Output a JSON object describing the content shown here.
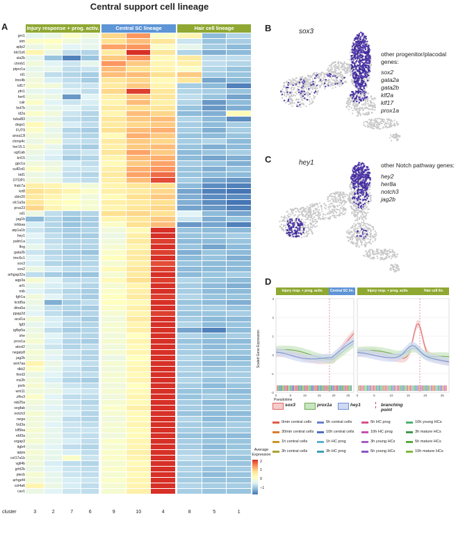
{
  "page_title": "Central support cell lineage",
  "panel_a": {
    "letter": "A",
    "groups": [
      {
        "label": "Injury response + prog. activ.",
        "color": "#8ea832"
      },
      {
        "label": "Central SC lineage",
        "color": "#5d95d6"
      },
      {
        "label": "Hair cell lineage",
        "color": "#8ea832"
      }
    ],
    "clusters": [
      "3",
      "2",
      "7",
      "6",
      "9",
      "10",
      "4",
      "8",
      "5",
      "1"
    ],
    "cluster_axis_label": "cluster",
    "genes": [
      "grn1",
      "stm",
      "aplp2",
      "blcl1s6",
      "sla2b",
      "ctnnb1",
      "ptprz1a",
      "id1",
      "lmo4b",
      "klf17",
      "pfn1",
      "her6",
      "calr",
      "fzd7b",
      "id2a",
      "tuba8l3",
      "degs1",
      "FUT9",
      "anxa13l",
      "chmp4c",
      "her15.1",
      "ugt1ab",
      "krt15",
      "gpc1a",
      "sulf2st1",
      "lad1",
      "OTOP1",
      "fndc7a",
      "krt8",
      "cbln20",
      "slc1a3a",
      "prss23",
      "isl1",
      "jag1b",
      "inhbaa",
      "atp1a1b",
      "hey1",
      "palm1a",
      "lfng",
      "gata2b",
      "tmc6c1",
      "sox3",
      "sox2",
      "arhgap32a",
      "aqp3a",
      "arl1",
      "mib",
      "fgfr1a",
      "kctd5a",
      "dtna5a",
      "ppap2d",
      "acsl1a",
      "fgf3",
      "igfbp5a",
      "she",
      "prox1a",
      "atoxl2",
      "negaly8",
      "jag2b",
      "wnt7aa",
      "dkk2",
      "fmnl3",
      "ms2b",
      "porb",
      "wnt11",
      "zfhx3",
      "rab25a",
      "vegfab",
      "notch3",
      "rarga",
      "fzd3a",
      "klf5ba",
      "ebf3a",
      "srgap3",
      "itgb4",
      "appa",
      "col17a1b",
      "vgll4b",
      "grhl2b",
      "plecb",
      "arhgef4",
      "col4a6",
      "cav1"
    ],
    "expression_matrix": [
      [
        0.2,
        0.3,
        0.6,
        0.4,
        1.4,
        1.9,
        0.6,
        0.9,
        -0.6,
        -0.3
      ],
      [
        0.6,
        0.7,
        0.4,
        0.2,
        1.3,
        1.6,
        1.2,
        -0.1,
        -0.5,
        -0.4
      ],
      [
        0.3,
        0.5,
        0.1,
        0.2,
        1.8,
        1.9,
        0.6,
        0.2,
        -0.4,
        -0.6
      ],
      [
        0.9,
        0.3,
        -0.2,
        -0.3,
        1.1,
        2.6,
        1.2,
        -0.3,
        -0.7,
        -0.6
      ],
      [
        0.2,
        -0.5,
        -1.1,
        -0.5,
        1.5,
        1.9,
        0.8,
        1.1,
        -0.2,
        -0.2
      ],
      [
        0.4,
        0.1,
        -0.1,
        0.2,
        1.9,
        1.5,
        0.9,
        1.0,
        -0.2,
        -0.3
      ],
      [
        0.2,
        0.2,
        -0.2,
        -0.1,
        1.6,
        1.3,
        0.9,
        0.6,
        -0.3,
        -0.5
      ],
      [
        0.3,
        -0.2,
        -0.3,
        -0.4,
        1.6,
        1.6,
        1.3,
        1.5,
        -0.4,
        -0.5
      ],
      [
        0.4,
        0.0,
        -0.2,
        -0.4,
        1.2,
        1.4,
        0.8,
        1.2,
        -0.8,
        -0.6
      ],
      [
        0.5,
        0.4,
        -0.1,
        -0.1,
        1.1,
        1.5,
        0.9,
        -0.4,
        -0.6,
        -1.1
      ],
      [
        0.2,
        0.1,
        0.0,
        -0.2,
        1.4,
        2.5,
        1.2,
        -0.3,
        -0.4,
        -0.5
      ],
      [
        0.4,
        0.3,
        -0.9,
        0.1,
        1.0,
        1.5,
        1.2,
        -0.2,
        -0.5,
        -0.8
      ],
      [
        0.6,
        0.1,
        -0.1,
        0.0,
        0.9,
        1.6,
        1.0,
        -0.3,
        -0.9,
        -0.6
      ],
      [
        0.3,
        0.2,
        0.1,
        -0.1,
        1.1,
        1.3,
        1.2,
        -0.5,
        -0.9,
        -0.7
      ],
      [
        0.6,
        0.4,
        -0.1,
        -0.3,
        0.9,
        1.6,
        1.4,
        -0.6,
        -0.7,
        0.8
      ],
      [
        0.3,
        0.2,
        -0.2,
        -0.3,
        1.2,
        1.5,
        1.6,
        -0.3,
        -0.6,
        -1.0
      ],
      [
        0.8,
        0.4,
        0.0,
        -0.2,
        1.1,
        1.4,
        1.5,
        -0.4,
        -0.6,
        -0.4
      ],
      [
        0.6,
        0.2,
        -0.3,
        -0.4,
        1.3,
        1.6,
        1.7,
        -0.4,
        -0.7,
        -0.4
      ],
      [
        0.4,
        0.3,
        -0.2,
        -0.3,
        0.8,
        1.7,
        1.5,
        -0.5,
        -0.6,
        -0.5
      ],
      [
        0.3,
        0.5,
        -0.1,
        -0.2,
        1.1,
        1.5,
        1.4,
        -0.4,
        -0.3,
        -0.6
      ],
      [
        0.5,
        0.2,
        -0.3,
        -0.4,
        1.0,
        1.5,
        1.6,
        -0.5,
        -0.7,
        -0.6
      ],
      [
        0.3,
        0.1,
        -0.2,
        -0.1,
        1.2,
        1.8,
        1.5,
        -0.6,
        -0.5,
        -0.4
      ],
      [
        0.2,
        0.0,
        -0.4,
        -0.3,
        0.9,
        1.6,
        1.7,
        -0.6,
        -0.8,
        -0.7
      ],
      [
        0.4,
        0.3,
        0.0,
        -0.2,
        0.8,
        1.5,
        1.8,
        -0.4,
        -0.5,
        -0.7
      ],
      [
        0.6,
        0.4,
        -0.1,
        -0.1,
        1.0,
        1.7,
        1.9,
        -0.5,
        -0.7,
        -0.5
      ],
      [
        0.3,
        0.2,
        -0.2,
        -0.3,
        1.1,
        1.8,
        2.2,
        -0.5,
        -0.6,
        -0.6
      ],
      [
        0.4,
        0.3,
        -0.1,
        -0.2,
        1.0,
        1.6,
        2.4,
        -0.4,
        -0.8,
        -0.9
      ],
      [
        1.0,
        0.9,
        0.6,
        0.4,
        0.9,
        1.2,
        1.3,
        -0.6,
        -1.0,
        -1.1
      ],
      [
        1.3,
        1.1,
        0.9,
        0.6,
        1.0,
        1.1,
        1.4,
        -0.8,
        -1.1,
        -1.2
      ],
      [
        1.1,
        0.9,
        0.6,
        0.4,
        0.8,
        1.3,
        1.5,
        -0.7,
        -1.0,
        -1.0
      ],
      [
        1.2,
        0.8,
        0.7,
        0.5,
        1.0,
        1.1,
        1.3,
        -0.7,
        -1.0,
        -1.2
      ],
      [
        1.4,
        0.9,
        0.6,
        0.5,
        0.9,
        1.2,
        1.4,
        -0.8,
        -0.9,
        -1.1
      ],
      [
        0.3,
        -0.2,
        -0.4,
        -0.3,
        1.3,
        1.4,
        1.3,
        0.1,
        -0.6,
        -0.8
      ],
      [
        -0.6,
        -0.3,
        -0.5,
        -0.4,
        0.9,
        1.2,
        1.5,
        -0.1,
        -0.7,
        -0.5
      ],
      [
        0.0,
        -0.3,
        -0.5,
        -0.4,
        0.6,
        1.3,
        1.6,
        -0.9,
        -0.8,
        -1.1
      ],
      [
        -0.1,
        -0.3,
        -0.4,
        -0.3,
        0.4,
        0.8,
        2.6,
        -0.5,
        -0.6,
        -0.6
      ],
      [
        0.1,
        -0.2,
        -0.4,
        -0.4,
        0.3,
        1.0,
        2.6,
        -0.5,
        -0.5,
        -0.4
      ],
      [
        0.0,
        -0.2,
        -0.3,
        -0.3,
        0.4,
        1.1,
        2.5,
        -0.6,
        -0.6,
        -0.5
      ],
      [
        0.2,
        -0.1,
        -0.3,
        -0.3,
        0.5,
        0.9,
        2.6,
        -0.5,
        -0.8,
        -0.6
      ],
      [
        -0.1,
        -0.3,
        -0.4,
        -0.5,
        0.6,
        1.1,
        2.5,
        -0.7,
        -0.5,
        -0.6
      ],
      [
        0.1,
        -0.2,
        -0.3,
        -0.3,
        0.7,
        1.1,
        2.6,
        -0.6,
        -0.5,
        -0.7
      ],
      [
        0.0,
        -0.3,
        -0.4,
        -0.3,
        0.5,
        1.0,
        2.4,
        -0.5,
        -0.6,
        -0.6
      ],
      [
        0.3,
        0.0,
        -0.2,
        -0.2,
        0.8,
        1.2,
        2.5,
        -0.6,
        -0.6,
        -0.6
      ],
      [
        -0.2,
        -0.4,
        -0.5,
        -0.5,
        0.5,
        1.1,
        2.6,
        -0.6,
        -0.5,
        -0.4
      ],
      [
        0.5,
        0.1,
        -0.2,
        -0.2,
        0.8,
        1.3,
        2.5,
        -0.3,
        -0.5,
        -0.6
      ],
      [
        0.2,
        0.0,
        -0.1,
        -0.3,
        0.5,
        0.9,
        2.6,
        -0.4,
        -0.6,
        -0.7
      ],
      [
        0.1,
        -0.1,
        -0.3,
        -0.4,
        0.6,
        1.0,
        2.6,
        -0.4,
        -0.6,
        -0.6
      ],
      [
        0.4,
        0.1,
        -0.2,
        -0.4,
        0.7,
        1.1,
        2.5,
        -0.3,
        -0.5,
        -0.5
      ],
      [
        0.3,
        -0.7,
        -0.4,
        -0.2,
        0.7,
        0.8,
        2.6,
        -0.5,
        -0.6,
        -0.7
      ],
      [
        0.2,
        -0.2,
        -0.3,
        -0.4,
        0.6,
        1.0,
        2.6,
        -0.4,
        -0.4,
        -0.5
      ],
      [
        0.1,
        -0.2,
        -0.4,
        -0.3,
        0.5,
        0.9,
        2.5,
        -0.5,
        -0.5,
        -0.4
      ],
      [
        0.4,
        0.0,
        -0.2,
        -0.4,
        0.4,
        1.1,
        2.6,
        -0.4,
        -0.6,
        -0.6
      ],
      [
        0.2,
        0.0,
        -0.3,
        -0.3,
        0.5,
        0.9,
        2.7,
        -0.3,
        -0.6,
        -0.5
      ],
      [
        0.3,
        -0.2,
        -0.4,
        -0.3,
        0.5,
        1.0,
        2.6,
        -0.8,
        -1.1,
        -0.6
      ],
      [
        0.4,
        0.1,
        -0.2,
        -0.3,
        0.4,
        0.7,
        2.6,
        -0.3,
        -0.5,
        -0.4
      ],
      [
        0.5,
        0.0,
        -0.3,
        -0.4,
        0.5,
        0.9,
        2.8,
        -0.5,
        -0.6,
        -0.6
      ],
      [
        0.3,
        -0.1,
        -0.3,
        -0.2,
        0.4,
        0.8,
        2.7,
        -0.4,
        -0.6,
        -0.5
      ],
      [
        0.5,
        0.2,
        -0.1,
        -0.3,
        0.5,
        0.9,
        2.7,
        -0.4,
        -0.5,
        -0.5
      ],
      [
        0.4,
        0.1,
        -0.2,
        -0.3,
        0.3,
        0.7,
        2.8,
        -0.3,
        -0.5,
        -0.6
      ],
      [
        0.9,
        0.3,
        0.0,
        -0.2,
        0.5,
        0.8,
        2.7,
        -0.4,
        -0.6,
        -0.5
      ],
      [
        0.6,
        0.2,
        -0.1,
        -0.3,
        0.4,
        0.9,
        2.8,
        -0.3,
        -0.5,
        -0.4
      ],
      [
        0.3,
        0.1,
        -0.2,
        -0.2,
        0.5,
        0.8,
        2.8,
        -0.4,
        -0.4,
        -0.4
      ],
      [
        0.4,
        0.0,
        -0.3,
        -0.4,
        0.5,
        0.9,
        2.7,
        -0.3,
        -0.5,
        -0.4
      ],
      [
        0.5,
        0.2,
        -0.1,
        -0.2,
        0.4,
        0.7,
        2.8,
        -0.4,
        -0.6,
        -0.5
      ],
      [
        0.4,
        0.3,
        0.0,
        -0.1,
        0.5,
        0.8,
        2.8,
        -0.5,
        -0.5,
        -0.6
      ],
      [
        0.6,
        0.1,
        -0.2,
        -0.2,
        0.4,
        0.9,
        2.8,
        -0.5,
        -0.4,
        -0.5
      ],
      [
        0.4,
        0.2,
        -0.1,
        -0.3,
        0.5,
        0.8,
        2.8,
        -0.4,
        -0.6,
        -0.5
      ],
      [
        0.3,
        0.1,
        -0.1,
        -0.2,
        0.6,
        1.0,
        2.8,
        -0.4,
        -0.5,
        -0.4
      ],
      [
        0.5,
        0.2,
        0.0,
        -0.3,
        0.5,
        0.8,
        2.8,
        -0.5,
        -0.6,
        -0.6
      ],
      [
        0.4,
        0.2,
        -0.2,
        -0.3,
        0.4,
        0.8,
        2.7,
        -0.3,
        -0.6,
        -0.5
      ],
      [
        0.4,
        0.1,
        -0.1,
        -0.2,
        0.5,
        0.9,
        2.8,
        -0.4,
        -0.5,
        -0.4
      ],
      [
        0.5,
        0.2,
        -0.1,
        -0.1,
        0.5,
        0.8,
        2.8,
        -0.4,
        -0.4,
        -0.4
      ],
      [
        0.4,
        0.2,
        -0.1,
        -0.2,
        0.4,
        0.8,
        2.8,
        -0.5,
        -0.6,
        -0.6
      ],
      [
        0.5,
        0.2,
        0.0,
        -0.2,
        0.6,
        0.9,
        2.7,
        -0.4,
        -0.5,
        -0.5
      ],
      [
        0.3,
        0.1,
        -0.2,
        -0.3,
        0.5,
        0.9,
        2.8,
        -0.4,
        -0.6,
        -0.5
      ],
      [
        0.5,
        0.2,
        0.0,
        -0.2,
        0.6,
        1.0,
        2.7,
        -0.3,
        -0.5,
        -0.4
      ],
      [
        0.4,
        0.2,
        0.6,
        -0.1,
        0.6,
        0.9,
        2.7,
        -0.2,
        -0.4,
        -0.5
      ],
      [
        0.4,
        0.0,
        -0.2,
        -0.3,
        0.5,
        0.8,
        2.8,
        -0.4,
        -0.4,
        -0.5
      ],
      [
        0.3,
        0.1,
        -0.1,
        -0.2,
        0.6,
        0.9,
        2.7,
        -0.3,
        -0.5,
        -0.4
      ],
      [
        0.5,
        0.2,
        -0.1,
        -0.2,
        0.5,
        0.8,
        2.8,
        -0.4,
        -0.6,
        -0.5
      ],
      [
        0.4,
        0.2,
        0.0,
        -0.1,
        0.6,
        0.9,
        2.7,
        -0.4,
        -0.5,
        -0.5
      ],
      [
        0.9,
        0.3,
        0.0,
        -0.2,
        0.5,
        0.9,
        2.7,
        -0.3,
        -0.4,
        -0.4
      ],
      [
        0.3,
        0.1,
        -0.1,
        -0.2,
        0.5,
        1.0,
        2.6,
        -0.4,
        -0.5,
        -0.5
      ]
    ],
    "colorbar": {
      "title_line1": "Average",
      "title_line2": "Expression",
      "ticks": [
        "2",
        "1",
        "0",
        "−1"
      ],
      "colors": [
        "#4575b4",
        "#91bfdb",
        "#e0f3f8",
        "#ffffbf",
        "#fee090",
        "#fc8d59",
        "#d73027"
      ]
    }
  },
  "panel_b": {
    "letter": "B",
    "gene": "sox3",
    "side_heading_line1": "other progenitor/placodal",
    "side_heading_line2": "genes:",
    "side_genes": [
      "sox2",
      "gata2a",
      "gata2b",
      "klf2a",
      "klf17",
      "prox1a"
    ]
  },
  "panel_c": {
    "letter": "C",
    "gene": "hey1",
    "side_heading": "other Notch pathway genes:",
    "side_genes": [
      "hey2",
      "her8a",
      "notch3",
      "jag2b"
    ]
  },
  "panel_d": {
    "letter": "D",
    "left_bar_a": "Injury resp. + prog. activ.",
    "left_bar_b": "Central SC lin.",
    "right_bar_a": "Injury resp. + prog. activ.",
    "right_bar_b": "Hair cell lin.",
    "ylabel": "Scaled Gene Expression",
    "xlabel": "Pseudotime",
    "xticks": [
      "0",
      "5",
      "10",
      "15",
      "20",
      "25"
    ],
    "yticks": [
      "3",
      "2",
      "1",
      "0",
      "-1",
      "-2"
    ],
    "gene_legend": [
      {
        "name": "sox3",
        "color": "#e06666"
      },
      {
        "name": "prox1a",
        "color": "#6aa84f"
      },
      {
        "name": "hey1",
        "color": "#6d8fd1"
      }
    ],
    "branching_label": "branching point",
    "cell_legend": [
      {
        "label": "0min central cells",
        "color": "#e05a47"
      },
      {
        "label": "30min central cells",
        "color": "#d97a2b"
      },
      {
        "label": "1h central cells",
        "color": "#c9962b"
      },
      {
        "label": "3h central cells",
        "color": "#a9a22e"
      },
      {
        "label": "5h central cells",
        "color": "#6a80c9"
      },
      {
        "label": "10h central cells",
        "color": "#4e6ec0"
      },
      {
        "label": "1h HC prog",
        "color": "#5ab0d0"
      },
      {
        "label": "3h HC prog",
        "color": "#3a9fb8"
      },
      {
        "label": "5h HC prog",
        "color": "#d64f8a"
      },
      {
        "label": "10h HC prog",
        "color": "#c74fb0"
      },
      {
        "label": "3h young HCs",
        "color": "#a25ec1"
      },
      {
        "label": "5h young HCs",
        "color": "#8a55c6"
      },
      {
        "label": "10h young HCs",
        "color": "#4bb070"
      },
      {
        "label": "3h mature HCs",
        "color": "#3f9a4c"
      },
      {
        "label": "5h mature HCs",
        "color": "#5aa83a"
      },
      {
        "label": "10h mature HCs",
        "color": "#7fb83a"
      }
    ]
  }
}
